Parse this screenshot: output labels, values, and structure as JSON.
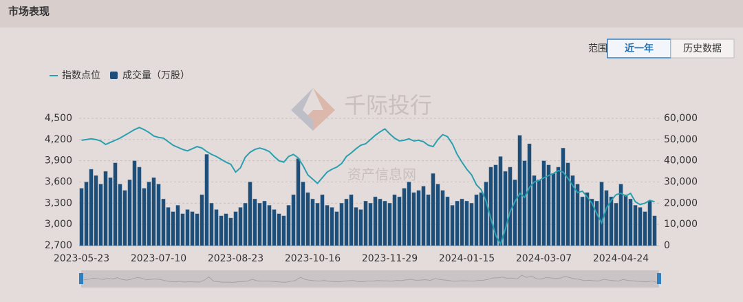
{
  "header": {
    "title": "市场表现"
  },
  "controls": {
    "range_label": "范围",
    "buttons": [
      "近一年",
      "历史数据"
    ]
  },
  "watermarks": [
    "千际投行",
    "资产信息网"
  ],
  "chart_data": {
    "type": "bar-line",
    "categories": [
      "2023-05-23",
      null,
      null,
      null,
      null,
      null,
      null,
      null,
      null,
      null,
      null,
      null,
      null,
      null,
      null,
      null,
      "2023-07-10",
      null,
      null,
      null,
      null,
      null,
      null,
      null,
      null,
      null,
      null,
      null,
      null,
      null,
      null,
      null,
      "2023-08-23",
      null,
      null,
      null,
      null,
      null,
      null,
      null,
      null,
      null,
      null,
      null,
      null,
      null,
      null,
      null,
      "2023-10-16",
      null,
      null,
      null,
      null,
      null,
      null,
      null,
      null,
      null,
      null,
      null,
      null,
      null,
      null,
      null,
      "2023-11-29",
      null,
      null,
      null,
      null,
      null,
      null,
      null,
      null,
      null,
      null,
      null,
      null,
      null,
      null,
      null,
      "2024-01-15",
      null,
      null,
      null,
      null,
      null,
      null,
      null,
      null,
      null,
      null,
      null,
      null,
      null,
      null,
      null,
      "2024-03-07",
      null,
      null,
      null,
      null,
      null,
      null,
      null,
      null,
      null,
      null,
      null,
      null,
      null,
      null,
      null,
      "2024-04-24",
      null,
      null,
      null,
      null,
      null,
      null,
      null
    ],
    "series": [
      {
        "name": "指数点位",
        "type": "line",
        "color": "#2a9fb0",
        "axis": "y",
        "values": [
          4190,
          4200,
          4210,
          4200,
          4180,
          4130,
          4160,
          4190,
          4220,
          4260,
          4300,
          4340,
          4370,
          4340,
          4300,
          4250,
          4230,
          4220,
          4170,
          4120,
          4090,
          4060,
          4040,
          4070,
          4100,
          4080,
          4030,
          3990,
          3960,
          3920,
          3880,
          3850,
          3740,
          3800,
          3950,
          4020,
          4060,
          4080,
          4060,
          4030,
          3960,
          3900,
          3880,
          3960,
          3990,
          3940,
          3830,
          3700,
          3640,
          3580,
          3660,
          3740,
          3780,
          3810,
          3860,
          3960,
          4010,
          4070,
          4120,
          4140,
          4200,
          4260,
          4310,
          4350,
          4280,
          4220,
          4180,
          4190,
          4210,
          4180,
          4190,
          4170,
          4120,
          4100,
          4200,
          4270,
          4240,
          4140,
          3990,
          3880,
          3780,
          3700,
          3560,
          3490,
          3330,
          3080,
          2850,
          2720,
          2930,
          3180,
          3320,
          3440,
          3380,
          3520,
          3600,
          3620,
          3660,
          3690,
          3720,
          3760,
          3740,
          3650,
          3550,
          3450,
          3470,
          3390,
          3300,
          3150,
          3020,
          3230,
          3340,
          3420,
          3440,
          3400,
          3440,
          3320,
          3280,
          3300,
          3340,
          3320
        ]
      },
      {
        "name": "成交量（万股）",
        "type": "bar",
        "color": "#1d4e7a",
        "axis": "y2",
        "values": [
          27000,
          30000,
          36000,
          33000,
          29000,
          35000,
          32000,
          39000,
          29000,
          26000,
          31000,
          40000,
          37000,
          27000,
          30000,
          32000,
          29000,
          22000,
          18000,
          16000,
          19000,
          15000,
          17000,
          16000,
          15000,
          24000,
          43000,
          20000,
          17000,
          14000,
          15000,
          13000,
          16000,
          18000,
          20000,
          30000,
          22000,
          20000,
          21000,
          19000,
          17000,
          15000,
          14000,
          19000,
          24000,
          41000,
          30000,
          25000,
          22000,
          20000,
          24000,
          19000,
          18000,
          16000,
          20000,
          22000,
          24000,
          18000,
          17000,
          21000,
          20000,
          23000,
          22000,
          21000,
          20000,
          24000,
          23000,
          27000,
          30000,
          25000,
          26000,
          28000,
          24000,
          34000,
          29000,
          26000,
          23000,
          19000,
          21000,
          22000,
          21000,
          20000,
          24000,
          25000,
          30000,
          37000,
          38000,
          42000,
          35000,
          37000,
          31000,
          52000,
          40000,
          48000,
          33000,
          31000,
          40000,
          38000,
          34000,
          37000,
          46000,
          39000,
          33000,
          29000,
          23000,
          25000,
          22000,
          21000,
          30000,
          26000,
          23000,
          20000,
          29000,
          24000,
          22000,
          19000,
          18000,
          16000,
          21000,
          14000
        ]
      }
    ],
    "ylim": [
      2700,
      4500
    ],
    "yticks": [
      {
        "value": 2700,
        "label": "2,700"
      },
      {
        "value": 3000,
        "label": "3,000"
      },
      {
        "value": 3300,
        "label": "3,300"
      },
      {
        "value": 3600,
        "label": "3,600"
      },
      {
        "value": 3900,
        "label": "3,900"
      },
      {
        "value": 4200,
        "label": "4,200"
      },
      {
        "value": 4500,
        "label": "4,500"
      }
    ],
    "y2lim": [
      0,
      60000
    ],
    "y2ticks": [
      0,
      {
        "value": 10000,
        "label": "10,000"
      },
      {
        "value": 20000,
        "label": "20,000"
      },
      {
        "value": 30000,
        "label": "30,000"
      },
      {
        "value": 40000,
        "label": "40,000"
      },
      {
        "value": 50000,
        "label": "50,000"
      },
      {
        "value": 60000,
        "label": "60,000"
      }
    ],
    "grid": true,
    "legend": "top-left"
  }
}
